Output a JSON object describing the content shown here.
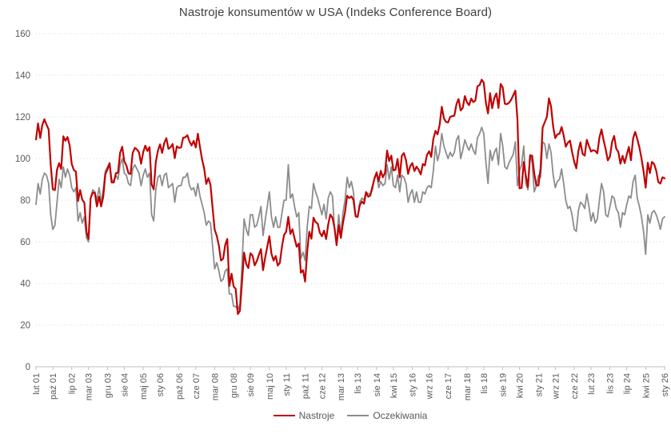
{
  "chart": {
    "title": "Nastroje konsumentów w USA (Indeks Conference Board)",
    "colors": {
      "nastroje": "#C00000",
      "oczekiwania": "#8C8C8C",
      "grid": "#DADADA",
      "axis": "#BFBFBF",
      "tick_text": "#595959",
      "title_text": "#404040",
      "background": "#FFFFFF"
    }
  },
  "legend": {
    "items": [
      {
        "label": "Nastroje"
      },
      {
        "label": "Oczekiwania"
      }
    ]
  },
  "chart_data": {
    "type": "line",
    "title": "Nastroje konsumentów w USA (Indeks Conference Board)",
    "x_unit": "monthly, lut 01 – sty 26",
    "ylim": [
      0,
      160
    ],
    "y_ticks": [
      0,
      20,
      40,
      60,
      80,
      100,
      120,
      140,
      160
    ],
    "grid": "horizontal dotted",
    "legend_position": "bottom",
    "x_tick_labels": [
      "lut 01",
      "paź 01",
      "lip 02",
      "mar 03",
      "gru 03",
      "sie 04",
      "maj 05",
      "sty 06",
      "paź 06",
      "cze 07",
      "mar 08",
      "gru 08",
      "sie 09",
      "maj 10",
      "sty 11",
      "paź 11",
      "cze 12",
      "mar 13",
      "lis 13",
      "sie 14",
      "kwi 15",
      "sty 16",
      "wrz 16",
      "cze 17",
      "mar 18",
      "lis 18",
      "sie 19",
      "kwi 20",
      "sty 21",
      "wrz 21",
      "cze 22",
      "lut 23",
      "lis 23",
      "lip 24",
      "kwi 25",
      "sty 26"
    ],
    "x_tick_month_index": [
      0,
      8,
      17,
      25,
      34,
      42,
      51,
      59,
      68,
      76,
      85,
      94,
      102,
      111,
      119,
      128,
      136,
      145,
      153,
      162,
      170,
      179,
      187,
      196,
      205,
      213,
      222,
      230,
      239,
      247,
      256,
      264,
      273,
      281,
      290,
      299
    ],
    "n_points": 300,
    "series": [
      {
        "name": "Nastroje",
        "color": "#C00000",
        "values": [
          109.2,
          116.9,
          109.9,
          116.1,
          118.9,
          116.3,
          114,
          97,
          85.3,
          84.9,
          94.6,
          97.8,
          95,
          110.7,
          108.5,
          110.3,
          106.3,
          97.4,
          94.5,
          93.7,
          79.6,
          84.9,
          80.3,
          78.8,
          64.8,
          61.4,
          81,
          83.6,
          83.5,
          77,
          81.7,
          77,
          81.7,
          92.5,
          94.8,
          97.7,
          88.5,
          88.5,
          93,
          93.1,
          102.8,
          105.7,
          98.7,
          96.7,
          92.9,
          92.6,
          102.7,
          105.1,
          104.4,
          103,
          97.5,
          103.1,
          106.2,
          103.6,
          105.5,
          87.5,
          85.2,
          98.3,
          103.8,
          106.8,
          102.7,
          107.5,
          109.8,
          104.7,
          105.4,
          107,
          100.2,
          105.9,
          105.1,
          105.3,
          110,
          110.2,
          111.2,
          108.2,
          106.3,
          108.5,
          105.3,
          111.9,
          105.6,
          99.5,
          95.2,
          87.8,
          90.6,
          87.3,
          76.4,
          65.9,
          62.8,
          58.1,
          51,
          51.9,
          58.5,
          61.4,
          38.8,
          44.7,
          38.6,
          37.4,
          25.3,
          26.9,
          40.8,
          54.8,
          49.3,
          47.4,
          54.5,
          53.4,
          48.7,
          50.6,
          53.6,
          56.5,
          46.4,
          52.3,
          57.7,
          62.7,
          54.3,
          51,
          53.2,
          48.6,
          49.9,
          57.8,
          63.4,
          64.8,
          72,
          63.8,
          66,
          61.7,
          57.6,
          59.2,
          45.2,
          46.4,
          40.9,
          55.2,
          64.8,
          61.5,
          71.6,
          69.5,
          68.7,
          64.4,
          62.7,
          65.4,
          61.3,
          68.4,
          73.1,
          71.5,
          66.7,
          58.4,
          68,
          61.9,
          69,
          74.3,
          82.1,
          81,
          81.8,
          80.2,
          72.4,
          72,
          77.5,
          79.4,
          78.3,
          83.9,
          81.7,
          82.2,
          86.4,
          90.3,
          93.4,
          89,
          94.1,
          91,
          93.1,
          103.8,
          98.8,
          101.4,
          94.3,
          94.6,
          99.8,
          91,
          101.3,
          102.6,
          99.1,
          92.6,
          96.3,
          97.8,
          94,
          96.1,
          94.7,
          92.4,
          97.4,
          96.7,
          101.8,
          103.5,
          100.8,
          109.4,
          113.3,
          111.6,
          116.1,
          124.9,
          119.4,
          117.6,
          117.3,
          120,
          120.4,
          120.6,
          126.2,
          128.6,
          123.1,
          124.3,
          130,
          127,
          125.6,
          128.8,
          127.1,
          127.9,
          134.7,
          135.3,
          137.9,
          136.4,
          126.6,
          121.7,
          131.4,
          124.2,
          129.2,
          131.3,
          124.3,
          135.8,
          134.2,
          126.3,
          126.1,
          126.8,
          128.2,
          130.4,
          132.6,
          118.8,
          85.7,
          85.9,
          98.3,
          91.7,
          86.3,
          101.3,
          101.4,
          92.9,
          87.1,
          87.1,
          95.2,
          114.9,
          117.5,
          120,
          128.9,
          125.1,
          115.2,
          109.8,
          111.6,
          111.9,
          115.2,
          111.1,
          105.7,
          107.6,
          108.6,
          103.2,
          98.4,
          95.3,
          103.6,
          107.8,
          102.2,
          101.4,
          109,
          106,
          103.4,
          104,
          103.7,
          102.5,
          110.1,
          114,
          108.7,
          104.3,
          99.1,
          101,
          108,
          110.9,
          104.8,
          103.1,
          97.5,
          101.3,
          97.8,
          101.9,
          105.6,
          99.2,
          109.6,
          112.8,
          109.5,
          105.3,
          100.1,
          93.9,
          86,
          98,
          93,
          98.4,
          97.4,
          94.2,
          88.7,
          88,
          91,
          90.5
        ]
      },
      {
        "name": "Oczekiwania",
        "color": "#8C8C8C",
        "values": [
          78,
          88,
          83,
          90,
          93,
          92,
          88,
          73,
          66,
          68,
          79,
          90,
          86,
          96,
          91,
          95,
          92,
          86,
          84,
          86,
          70,
          74,
          69,
          72,
          62,
          60,
          81,
          85,
          84,
          80,
          86,
          79,
          85,
          94,
          96,
          98,
          90,
          89,
          92,
          90,
          97,
          100,
          93,
          92,
          88,
          87,
          95,
          97,
          95,
          93,
          87,
          92,
          95,
          91,
          93,
          73,
          70,
          85,
          91,
          92,
          87,
          92,
          93,
          86,
          87,
          88,
          79,
          86,
          87,
          87,
          91,
          91,
          93,
          87,
          85,
          86,
          82,
          88,
          82,
          78,
          74,
          68,
          70,
          69,
          58,
          47,
          50,
          46,
          41,
          42,
          46,
          47,
          35,
          35,
          29,
          29,
          27,
          30,
          49,
          71,
          66,
          63,
          73,
          73,
          67,
          68,
          72,
          77,
          63,
          70,
          77,
          84,
          72,
          67,
          72,
          67,
          67,
          74,
          80,
          80,
          97,
          81,
          83,
          77,
          72,
          74,
          52,
          55,
          51,
          67,
          77,
          76,
          88,
          84,
          81,
          77,
          73,
          78,
          71,
          81,
          84,
          82,
          66,
          59,
          73,
          63,
          74,
          80,
          91,
          86,
          89,
          84,
          72,
          72,
          79,
          81,
          80,
          84,
          83,
          83,
          85,
          91,
          93,
          86,
          89,
          87,
          88,
          97,
          90,
          96,
          87,
          86,
          92,
          84,
          92,
          91,
          88,
          79,
          83,
          85,
          79,
          84,
          79,
          79,
          84,
          83,
          86,
          87,
          86,
          94,
          106,
          99,
          103,
          112,
          106,
          103,
          100,
          103,
          101,
          103,
          109,
          111,
          100,
          104,
          109,
          106,
          104,
          107,
          104,
          102,
          110,
          112,
          115,
          112,
          98,
          88,
          104,
          99,
          103,
          105,
          97,
          112,
          106,
          96,
          95,
          98,
          100,
          102,
          108,
          87,
          94,
          97,
          106,
          88,
          85,
          102,
          98,
          84,
          87,
          92,
          91,
          108,
          107,
          100,
          107,
          103,
          92,
          86,
          89,
          90,
          95,
          88,
          80,
          76,
          77,
          73,
          66,
          65,
          75,
          79,
          78,
          76,
          83,
          77,
          70,
          74,
          69,
          71,
          80,
          88,
          84,
          73,
          72,
          77,
          82,
          81,
          76,
          74,
          67,
          74,
          73,
          78,
          82,
          81,
          89,
          92,
          81,
          77,
          72,
          65,
          54,
          73,
          69,
          74,
          75,
          73,
          70,
          66,
          71,
          72
        ]
      }
    ]
  }
}
